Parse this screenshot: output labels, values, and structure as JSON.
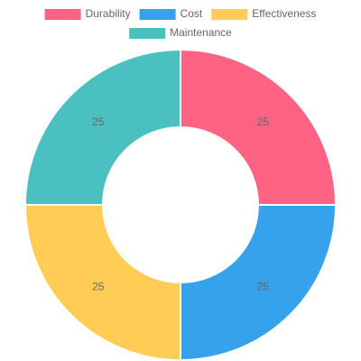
{
  "chart_data": {
    "type": "doughnut",
    "categories": [
      "Durability",
      "Cost",
      "Effectiveness",
      "Maintenance"
    ],
    "values": [
      25,
      25,
      25,
      25
    ],
    "colors": [
      "#ff6384",
      "#36a2eb",
      "#ffcd56",
      "#4bc0c0"
    ],
    "legend": "top"
  }
}
